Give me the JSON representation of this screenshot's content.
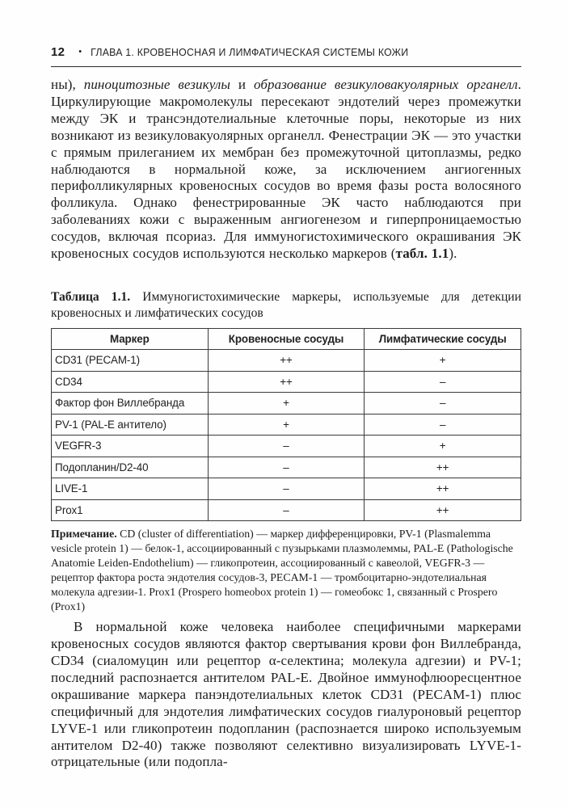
{
  "header": {
    "page_number": "12",
    "separator": "•",
    "chapter_title": "ГЛАВА 1. КРОВЕНОСНАЯ И ЛИМФАТИЧЕСКАЯ СИСТЕМЫ КОЖИ"
  },
  "paragraph1": {
    "part1": "ны), ",
    "italic1": "пиноцитозные везикулы",
    "part2": " и ",
    "italic2": "образование везикуловакуолярных органелл",
    "part3": ". Циркулирующие макромолекулы пересекают эндотелий через промежутки между ЭК и трансэндотелиальные клеточные поры, некоторые из них возникают из везикуловакуолярных органелл. Фенестрации ЭК — это участки с прямым прилеганием их мембран без промежуточной цитоплазмы, редко наблюдаются в нормальной коже, за исключением ангиогенных перифолликулярных кровеносных сосудов во время фазы роста волосяного фолликула. Однако фенестрированные ЭК часто наблюдаются при заболеваниях кожи с выраженным ангиогенезом и гиперпроницаемостью сосудов, включая псориаз. Для иммуногистохимического окрашивания ЭК кровеносных сосудов используются несколько маркеров (",
    "bold_ref": "табл. 1.1",
    "part4": ")."
  },
  "table": {
    "caption_label": "Таблица 1.1.",
    "caption_text": " Иммуногистохимические маркеры, используемые для детекции кровеносных и лимфатических сосудов",
    "columns": [
      "Маркер",
      "Кровеносные сосуды",
      "Лимфатические сосуды"
    ],
    "rows": [
      {
        "marker": "CD31 (PECAM-1)",
        "blood": "++",
        "lymph": "+"
      },
      {
        "marker": "CD34",
        "blood": "++",
        "lymph": "–"
      },
      {
        "marker": "Фактор фон Виллебранда",
        "blood": "+",
        "lymph": "–"
      },
      {
        "marker": "PV-1 (PAL-E антитело)",
        "blood": "+",
        "lymph": "–"
      },
      {
        "marker": "VEGFR-3",
        "blood": "–",
        "lymph": "+"
      },
      {
        "marker": "Подопланин/D2-40",
        "blood": "–",
        "lymph": "++"
      },
      {
        "marker": "LIVE-1",
        "blood": "–",
        "lymph": "++"
      },
      {
        "marker": "Prox1",
        "blood": "–",
        "lymph": "++"
      }
    ]
  },
  "note": {
    "label": "Примечание.",
    "text": " CD (cluster of differentiation) — маркер дифференцировки, PV-1 (Plasmalemma vesicle protein 1) — белок-1, ассоциированный с пузырьками плазмолеммы, PAL-E (Pathologische Anatomie Leiden-Endothelium) — гликопротеин, ассоциированный с кавеолой, VEGFR-3 — рецептор фактора роста эндотелия сосудов-3, PECAM-1 — тромбоцитарно-эндотелиальная молекула адгезии-1. Prox1 (Prospero homeobox protein 1) — гомеобокс 1, связанный с Prospero (Prox1)"
  },
  "paragraph2": {
    "text": "В нормальной коже человека наиболее специфичными маркерами кровеносных сосудов являются фактор свертывания крови фон Виллебранда, CD34 (сиаломуцин или рецептор α-селектина; молекула адгезии) и PV-1; последний распознается антителом PAL-E. Двойное иммунофлюоресцентное окрашивание маркера панэндотелиальных клеток CD31 (PECAM-1) плюс специфичный для эндотелия лимфатических сосудов гиалуроновый рецептор LYVE-1 или гликопротеин подопланин (распознается широко используемым антителом D2-40) также позволяют селективно визуализировать LYVE-1-отрицательные (или подопла-"
  }
}
